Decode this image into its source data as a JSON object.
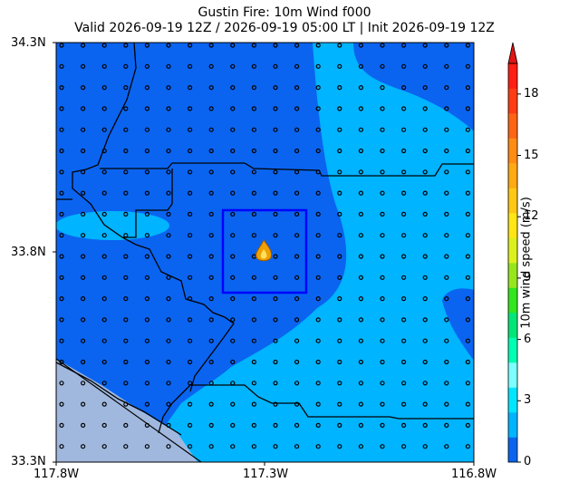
{
  "title_line1": "Gustin Fire: 10m Wind f000",
  "title_line2": "Valid 2026-09-19 12Z / 2026-09-19 05:00 LT | Init 2026-09-19 12Z",
  "map": {
    "lat_ticks": [
      "34.3N",
      "33.8N",
      "33.3N"
    ],
    "lon_ticks": [
      "117.8W",
      "117.3W",
      "116.8W"
    ],
    "box_color": "#0000ff",
    "boundary_color": "#000000",
    "ocean_color": "#a0b8de",
    "fire_icon": "fire-icon"
  },
  "colorbar": {
    "label": "10m wind speed (m/s)",
    "ticks": [
      "0",
      "3",
      "6",
      "9",
      "12",
      "15",
      "18"
    ],
    "tick_values": [
      0,
      3,
      6,
      9,
      12,
      15,
      18
    ],
    "range": [
      0,
      19.5
    ],
    "extend": "max",
    "colors": [
      "#0a64f0",
      "#00b4ff",
      "#00e6ff",
      "#7dffff",
      "#00ffb4",
      "#00e678",
      "#32e61e",
      "#96e61e",
      "#dcf01e",
      "#ffe614",
      "#ffc814",
      "#ffaa14",
      "#ff8c14",
      "#ff6414",
      "#ff3c14",
      "#ff1e14"
    ],
    "extend_color": "#e11414"
  },
  "wind_colors": {
    "zero_to_1_5": "#0a64f0",
    "from_1_5_to_3": "#00b4ff"
  }
}
